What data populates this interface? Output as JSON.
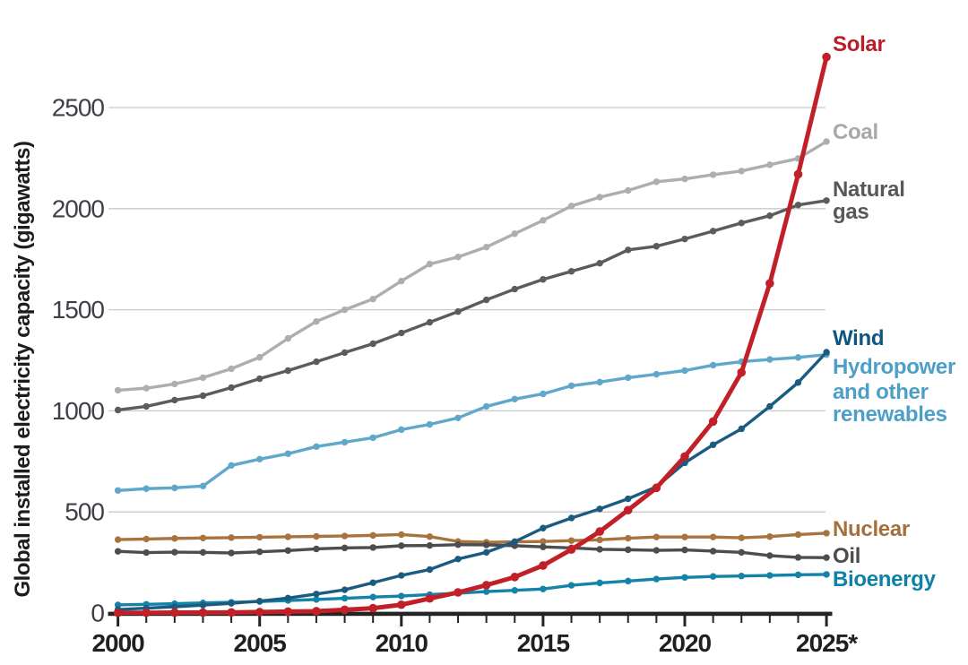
{
  "chart_data": {
    "type": "line",
    "title": "",
    "ylabel": "Global installed electricity capacity (gigawatts)",
    "xlabel": "",
    "unit": "gigawatts",
    "x": [
      2000,
      2001,
      2002,
      2003,
      2004,
      2005,
      2006,
      2007,
      2008,
      2009,
      2010,
      2011,
      2012,
      2013,
      2014,
      2015,
      2016,
      2017,
      2018,
      2019,
      2020,
      2021,
      2022,
      2023,
      2024,
      2025
    ],
    "x_tick_years": [
      2000,
      2005,
      2010,
      2015,
      2020,
      2025
    ],
    "x_tick_labels": [
      "2000",
      "2005",
      "2010",
      "2015",
      "2020",
      "2025*"
    ],
    "y_ticks": [
      0,
      500,
      1000,
      1500,
      2000,
      2500
    ],
    "ylim": [
      0,
      2800
    ],
    "xlim": [
      2000,
      2025
    ],
    "grid": true,
    "legend_position": "right-end-labels",
    "footnote_marker": "*",
    "series": [
      {
        "name": "Coal",
        "label_lines": [
          "Coal"
        ],
        "color": "#adaeb0",
        "label_color": "#a6a8ab",
        "values": [
          1102,
          1112,
          1133,
          1164,
          1208,
          1265,
          1358,
          1442,
          1500,
          1553,
          1642,
          1726,
          1761,
          1810,
          1876,
          1942,
          2013,
          2057,
          2090,
          2133,
          2147,
          2168,
          2186,
          2217,
          2248,
          2332
        ]
      },
      {
        "name": "Natural gas",
        "label_lines": [
          "Natural",
          "gas"
        ],
        "color": "#5b5c5e",
        "label_color": "#57585a",
        "values": [
          1004,
          1022,
          1053,
          1075,
          1115,
          1159,
          1199,
          1243,
          1288,
          1332,
          1385,
          1438,
          1491,
          1549,
          1602,
          1650,
          1690,
          1730,
          1796,
          1814,
          1850,
          1889,
          1929,
          1965,
          2018,
          2040
        ]
      },
      {
        "name": "Hydropower",
        "label_lines": [
          "Hydropower",
          "and other",
          "renewables"
        ],
        "color": "#60a8ca",
        "label_color": "#4e9fc8",
        "values": [
          606,
          615,
          619,
          628,
          730,
          761,
          788,
          823,
          845,
          867,
          907,
          933,
          965,
          1022,
          1058,
          1084,
          1124,
          1142,
          1164,
          1181,
          1199,
          1226,
          1243,
          1254,
          1264,
          1278
        ]
      },
      {
        "name": "Nuclear",
        "label_lines": [
          "Nuclear"
        ],
        "color": "#a97340",
        "label_color": "#a4703c",
        "values": [
          363,
          366,
          369,
          371,
          373,
          375,
          377,
          379,
          381,
          384,
          388,
          378,
          354,
          350,
          352,
          354,
          358,
          362,
          370,
          376,
          376,
          376,
          372,
          378,
          388,
          395
        ]
      },
      {
        "name": "Oil",
        "label_lines": [
          "Oil"
        ],
        "color": "#4c4d4f",
        "label_color": "#4c4d4f",
        "values": [
          305,
          299,
          301,
          300,
          297,
          303,
          309,
          317,
          322,
          324,
          333,
          334,
          338,
          337,
          333,
          327,
          322,
          315,
          313,
          310,
          312,
          306,
          300,
          284,
          275,
          274
        ]
      },
      {
        "name": "Bioenergy",
        "label_lines": [
          "Bioenergy"
        ],
        "color": "#1483a8",
        "label_color": "#0e81a8",
        "values": [
          40,
          43,
          46,
          50,
          53,
          57,
          62,
          67,
          73,
          79,
          84,
          91,
          98,
          106,
          112,
          119,
          137,
          149,
          158,
          168,
          176,
          181,
          183,
          186,
          189,
          191
        ]
      },
      {
        "name": "Wind",
        "label_lines": [
          "Wind"
        ],
        "color": "#1b5b80",
        "label_color": "#0f567e",
        "values": [
          17,
          24,
          31,
          39,
          48,
          59,
          74,
          94,
          115,
          150,
          186,
          215,
          267,
          300,
          353,
          420,
          470,
          515,
          565,
          624,
          743,
          832,
          911,
          1022,
          1140,
          1290
        ]
      },
      {
        "name": "Solar",
        "label_lines": [
          "Solar"
        ],
        "color": "#c22028",
        "label_color": "#b91e27",
        "values": [
          1,
          1,
          2,
          2,
          3,
          5,
          7,
          9,
          16,
          24,
          41,
          72,
          102,
          138,
          178,
          235,
          314,
          403,
          509,
          619,
          774,
          947,
          1190,
          1630,
          2170,
          2750
        ]
      }
    ]
  }
}
